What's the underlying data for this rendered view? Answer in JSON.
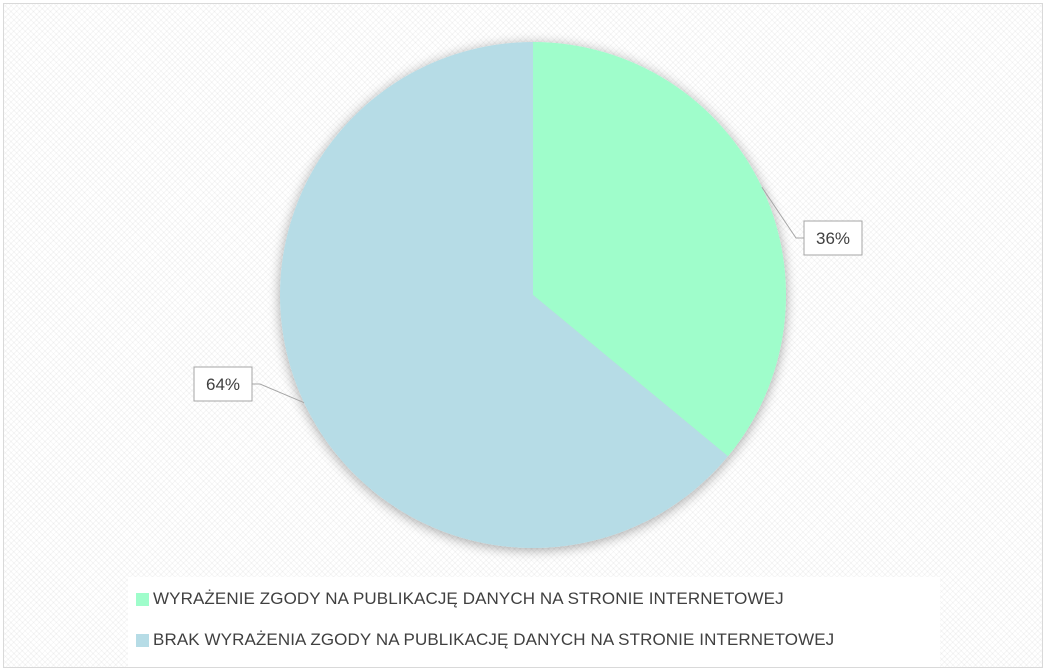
{
  "chart_data": {
    "type": "pie",
    "title": "",
    "slices": [
      {
        "label": "WYRAŻENIE ZGODY NA PUBLIKACJĘ DANYCH NA STRONIE INTERNETOWEJ",
        "value": 36,
        "display": "36%",
        "color": "#9ffdcb"
      },
      {
        "label": "BRAK WYRAŻENIA ZGODY NA PUBLIKACJĘ DANYCH NA STRONIE INTERNETOWEJ",
        "value": 64,
        "display": "64%",
        "color": "#b6dce6"
      }
    ],
    "start_angle": "12 o'clock",
    "direction": "clockwise",
    "legend": "bottom"
  }
}
